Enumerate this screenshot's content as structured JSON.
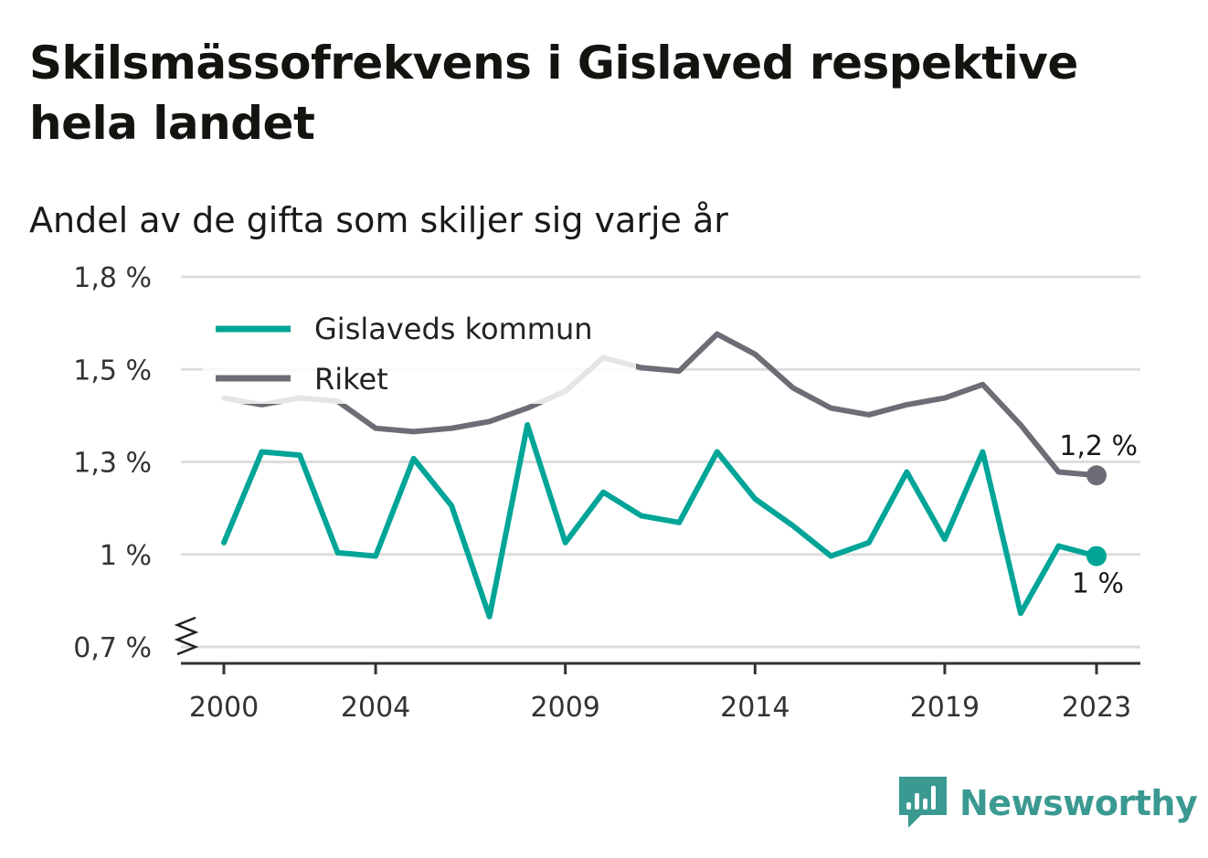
{
  "title": "Skilsmässofrekvens i Gislaved respektive hela landet",
  "subtitle": "Andel av de gifta som skiljer sig varje år",
  "brand": "Newsworthy",
  "colors": {
    "gislaved": "#00a598",
    "riket": "#6e6d75",
    "grid": "#dddddd",
    "axis": "#333333"
  },
  "chart_data": {
    "type": "line",
    "x": [
      2000,
      2001,
      2002,
      2003,
      2004,
      2005,
      2006,
      2007,
      2008,
      2009,
      2010,
      2011,
      2012,
      2013,
      2014,
      2015,
      2016,
      2017,
      2018,
      2019,
      2020,
      2021,
      2022,
      2023
    ],
    "x_ticks": [
      "2000",
      "2004",
      "2009",
      "2014",
      "2019",
      "2023"
    ],
    "y_ticks": [
      "0,7 %",
      "1 %",
      "1,3 %",
      "1,5 %",
      "1,8 %"
    ],
    "ylim": [
      0.7,
      1.8
    ],
    "y_axis_broken": true,
    "grid": true,
    "legend_position": "top-left",
    "series": [
      {
        "name": "Gislaveds kommun",
        "color": "#00a598",
        "values": [
          1.01,
          1.28,
          1.27,
          0.98,
          0.97,
          1.26,
          1.12,
          0.79,
          1.36,
          1.01,
          1.16,
          1.09,
          1.07,
          1.28,
          1.14,
          1.06,
          0.97,
          1.01,
          1.22,
          1.02,
          1.28,
          0.8,
          1.0,
          0.97
        ],
        "end_label": "1 %"
      },
      {
        "name": "Riket",
        "color": "#6e6d75",
        "values": [
          1.44,
          1.42,
          1.44,
          1.43,
          1.35,
          1.34,
          1.35,
          1.37,
          1.41,
          1.46,
          1.56,
          1.53,
          1.52,
          1.63,
          1.57,
          1.47,
          1.41,
          1.39,
          1.42,
          1.44,
          1.48,
          1.36,
          1.22,
          1.21
        ],
        "end_label": "1,2 %"
      }
    ]
  }
}
